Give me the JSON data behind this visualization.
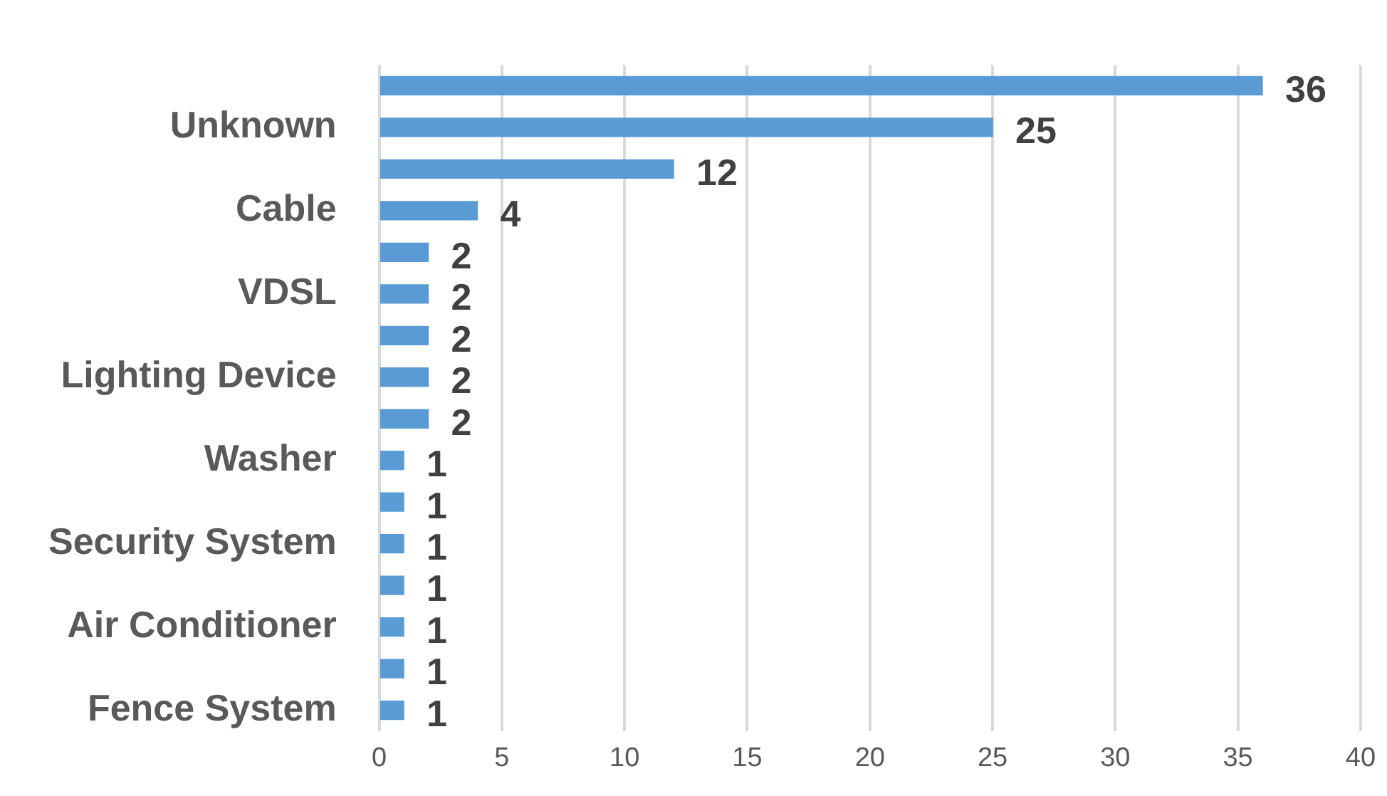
{
  "chart_data": {
    "type": "bar",
    "orientation": "horizontal",
    "categories": [
      null,
      "Unknown",
      null,
      "Cable",
      null,
      "VDSL",
      null,
      "Lighting Device",
      null,
      "Washer",
      null,
      "Security System",
      null,
      "Air Conditioner",
      null,
      "Fence System"
    ],
    "values": [
      36,
      25,
      12,
      4,
      2,
      2,
      2,
      2,
      2,
      1,
      1,
      1,
      1,
      1,
      1,
      1
    ],
    "color": "#5b9bd5",
    "xlim": [
      0,
      40
    ],
    "xticks": [
      0,
      5,
      10,
      15,
      20,
      25,
      30,
      35,
      40
    ],
    "grid": "x",
    "legend": false,
    "data_labels": true
  }
}
